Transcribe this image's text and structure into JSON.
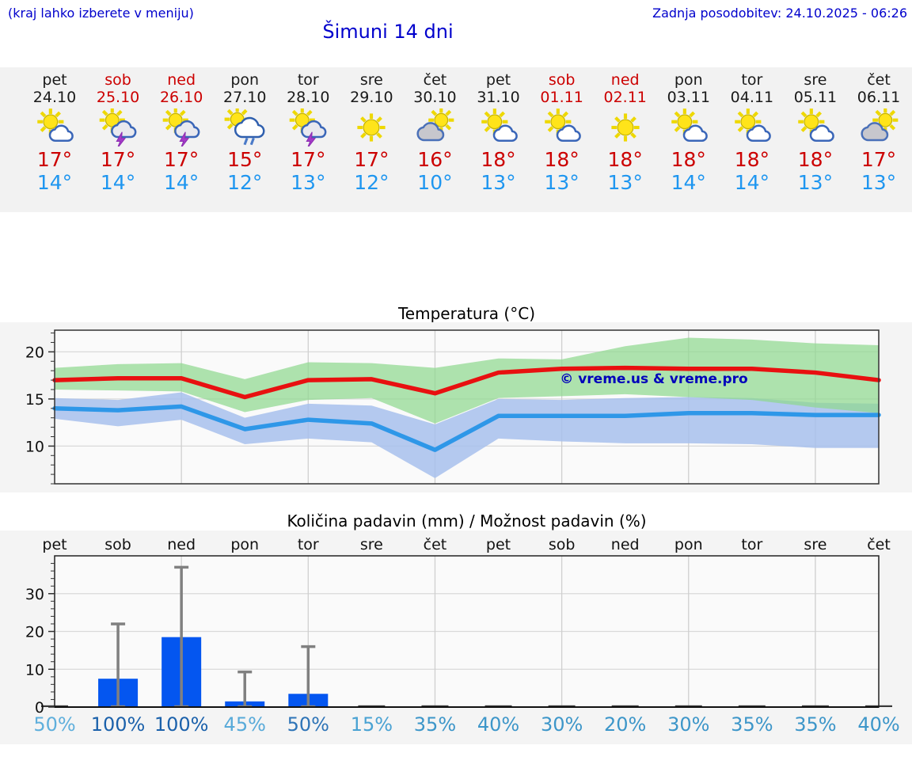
{
  "page": {
    "hint": "(kraj lahko izberete v meniju)",
    "title": "Šimuni 14 dni",
    "last_update": "Zadnja posodobitev: 24.10.2025 - 06:26"
  },
  "colors": {
    "link_blue": "#0000cc",
    "weekend_red": "#cc0000",
    "high_temp_red": "#cc0000",
    "low_temp_blue": "#1e96f0",
    "strip_bg": "#f2f2f2",
    "figure_bg": "#f4f4f4",
    "plot_bg": "#fafafa"
  },
  "forecast": {
    "days": [
      {
        "name": "pet",
        "date": "24.10",
        "weekend": false,
        "icon": "sun-small-cloud",
        "high": "17°",
        "low": "14°"
      },
      {
        "name": "sob",
        "date": "25.10",
        "weekend": true,
        "icon": "thunderstorm",
        "high": "17°",
        "low": "14°"
      },
      {
        "name": "ned",
        "date": "26.10",
        "weekend": true,
        "icon": "thunderstorm",
        "high": "17°",
        "low": "14°"
      },
      {
        "name": "pon",
        "date": "27.10",
        "weekend": false,
        "icon": "rain-shower",
        "high": "15°",
        "low": "12°"
      },
      {
        "name": "tor",
        "date": "28.10",
        "weekend": false,
        "icon": "thunderstorm",
        "high": "17°",
        "low": "13°"
      },
      {
        "name": "sre",
        "date": "29.10",
        "weekend": false,
        "icon": "sunny",
        "high": "17°",
        "low": "12°"
      },
      {
        "name": "čet",
        "date": "30.10",
        "weekend": false,
        "icon": "sun-gray-cloud",
        "high": "16°",
        "low": "10°"
      },
      {
        "name": "pet",
        "date": "31.10",
        "weekend": false,
        "icon": "sun-small-cloud",
        "high": "18°",
        "low": "13°"
      },
      {
        "name": "sob",
        "date": "01.11",
        "weekend": true,
        "icon": "sun-small-cloud",
        "high": "18°",
        "low": "13°"
      },
      {
        "name": "ned",
        "date": "02.11",
        "weekend": true,
        "icon": "sunny",
        "high": "18°",
        "low": "13°"
      },
      {
        "name": "pon",
        "date": "03.11",
        "weekend": false,
        "icon": "sun-small-cloud",
        "high": "18°",
        "low": "14°"
      },
      {
        "name": "tor",
        "date": "04.11",
        "weekend": false,
        "icon": "sun-small-cloud",
        "high": "18°",
        "low": "14°"
      },
      {
        "name": "sre",
        "date": "05.11",
        "weekend": false,
        "icon": "sun-small-cloud",
        "high": "18°",
        "low": "13°"
      },
      {
        "name": "čet",
        "date": "06.11",
        "weekend": false,
        "icon": "sun-gray-cloud",
        "high": "17°",
        "low": "13°"
      }
    ]
  },
  "chart_data": [
    {
      "type": "line",
      "title": "Temperatura (°C)",
      "watermark": "© vreme.us & vreme.pro",
      "categories": [
        "24.10",
        "25.10",
        "26.10",
        "27.10",
        "28.10",
        "29.10",
        "30.10",
        "31.10",
        "01.11",
        "02.11",
        "03.11",
        "04.11",
        "05.11",
        "06.11"
      ],
      "ylim": [
        6,
        22.3
      ],
      "yticks": [
        10,
        15,
        20
      ],
      "grid_x_day_indices": [
        2,
        4,
        6,
        8,
        10,
        12
      ],
      "series": [
        {
          "name": "max-temp",
          "color": "#e81010",
          "values": [
            17,
            17.2,
            17.2,
            15.2,
            17,
            17.1,
            15.6,
            17.8,
            18.2,
            18.3,
            18.2,
            18.2,
            17.8,
            17
          ]
        },
        {
          "name": "min-temp",
          "color": "#2e97e8",
          "values": [
            14,
            13.8,
            14.2,
            11.8,
            12.8,
            12.4,
            9.6,
            13.2,
            13.2,
            13.2,
            13.5,
            13.5,
            13.3,
            13.3
          ]
        }
      ],
      "bands": [
        {
          "name": "min-temp-range",
          "color": "#a7c0ec",
          "opacity": 0.85,
          "upper": [
            15.1,
            14.9,
            15.7,
            13,
            14.5,
            14.3,
            12.3,
            15,
            14.9,
            15.1,
            15.2,
            15.1,
            14.6,
            14.5
          ],
          "lower": [
            12.9,
            12.1,
            12.8,
            10.2,
            10.8,
            10.4,
            6.6,
            10.8,
            10.5,
            10.3,
            10.3,
            10.2,
            9.8,
            9.8
          ]
        },
        {
          "name": "max-temp-range",
          "color": "#8fd88f",
          "opacity": 0.72,
          "upper": [
            18.3,
            18.7,
            18.8,
            17.1,
            18.9,
            18.8,
            18.3,
            19.3,
            19.2,
            20.6,
            21.5,
            21.3,
            20.9,
            20.7
          ],
          "lower": [
            16,
            15.9,
            15.8,
            13.6,
            14.9,
            15.1,
            12.4,
            15.1,
            15.3,
            15.5,
            15.2,
            14.9,
            14.1,
            13.5
          ]
        }
      ]
    },
    {
      "type": "bar",
      "title": "Količina padavin (mm) / Možnost padavin (%)",
      "categories": [
        "pet",
        "sob",
        "ned",
        "pon",
        "tor",
        "sre",
        "čet",
        "pet",
        "sob",
        "ned",
        "pon",
        "tor",
        "sre",
        "čet"
      ],
      "values": [
        0,
        7.5,
        18.5,
        1.5,
        3.5,
        0,
        0,
        0,
        0,
        0,
        0,
        0,
        0,
        0
      ],
      "whisker_max": [
        0,
        22,
        37,
        9.3,
        16,
        0,
        0,
        0,
        0,
        0,
        0,
        0,
        0,
        0
      ],
      "probabilities": [
        "50%",
        "100%",
        "100%",
        "45%",
        "50%",
        "15%",
        "35%",
        "40%",
        "30%",
        "20%",
        "30%",
        "35%",
        "35%",
        "40%"
      ],
      "prob_colors": [
        "#5fafdc",
        "#1b61ab",
        "#1b61ab",
        "#58aad9",
        "#2e74b7",
        "#49a2d3",
        "#3d96c9",
        "#3d96c9",
        "#3d96c9",
        "#3d96c9",
        "#3d96c9",
        "#3d96c9",
        "#3d96c9",
        "#3d96c9"
      ],
      "bar_color": "#0456f0",
      "whisker_color": "#808080",
      "ylim": [
        0,
        40
      ],
      "yticks": [
        0,
        10,
        20,
        30
      ],
      "grid_x_day_indices": [
        2,
        4,
        6,
        8,
        10,
        12
      ]
    }
  ]
}
